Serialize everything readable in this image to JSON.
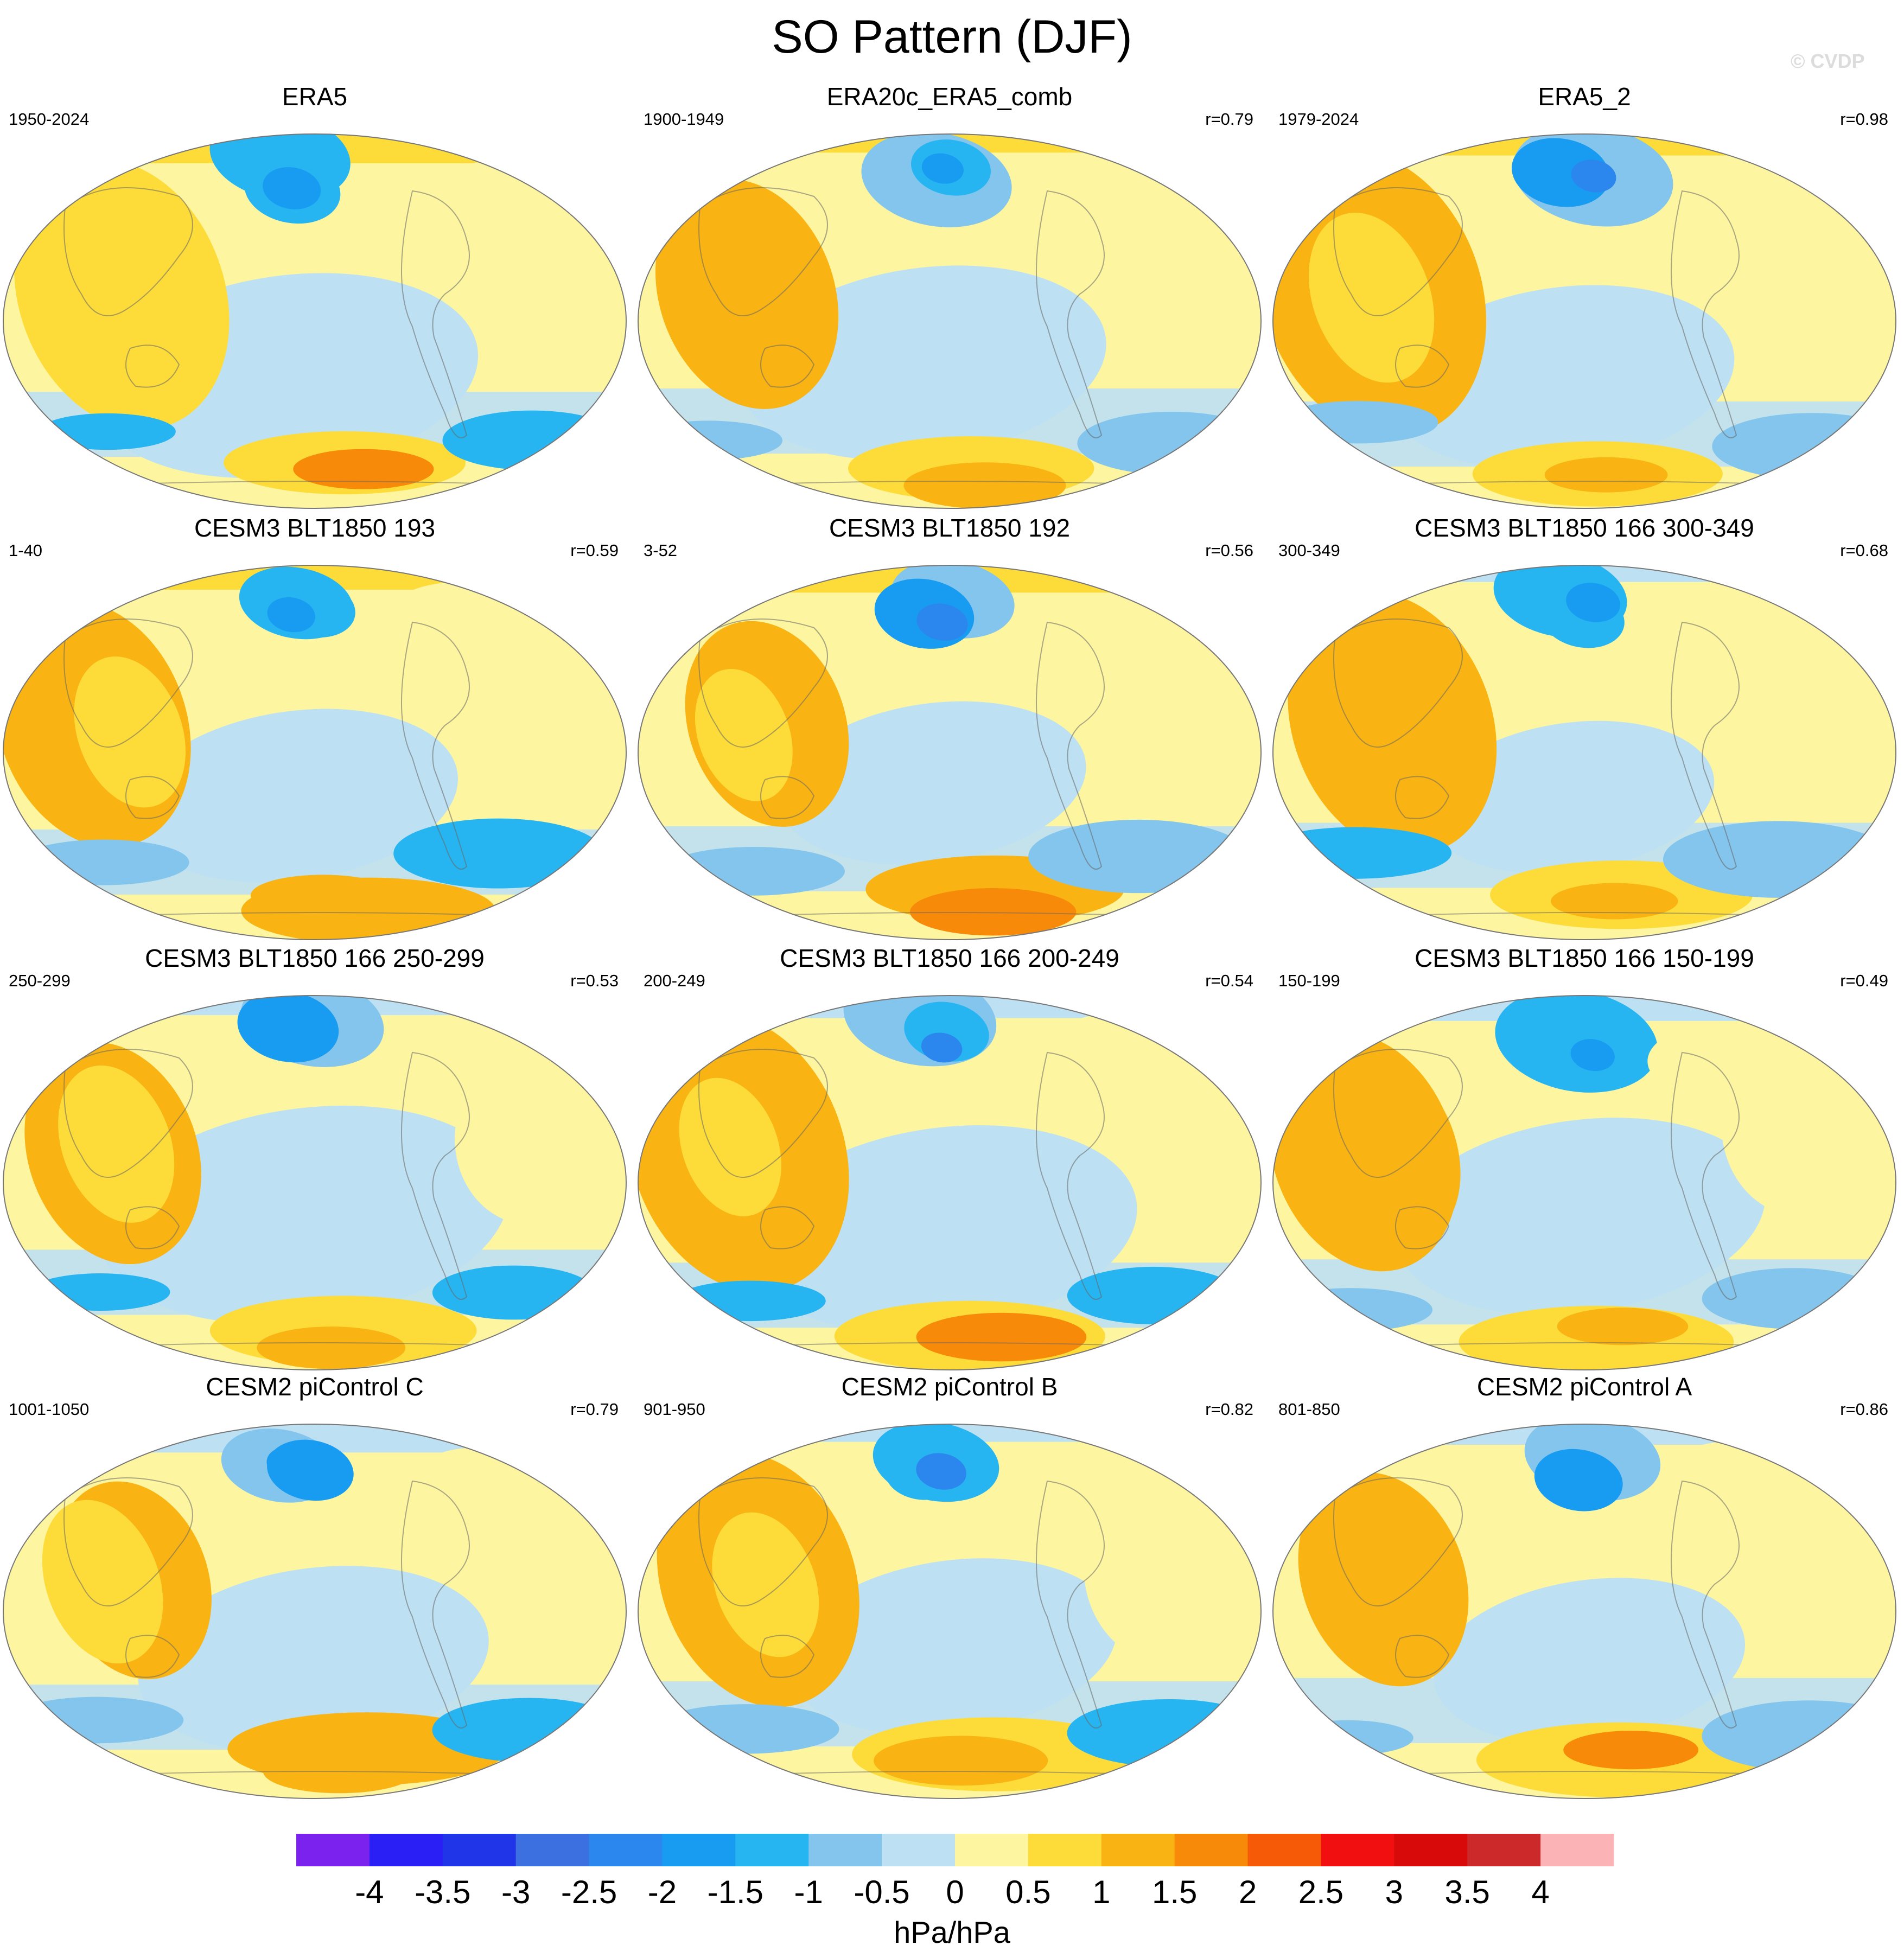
{
  "title": "SO Pattern (DJF)",
  "watermark": "© CVDP",
  "panels": [
    {
      "title": "ERA5",
      "period": "1950-2024",
      "r": "",
      "seed": 1
    },
    {
      "title": "ERA20c_ERA5_comb",
      "period": "1900-1949",
      "r": "r=0.79",
      "seed": 2
    },
    {
      "title": "ERA5_2",
      "period": "1979-2024",
      "r": "r=0.98",
      "seed": 3
    },
    {
      "title": "CESM3 BLT1850 193",
      "period": "1-40",
      "r": "r=0.59",
      "seed": 4
    },
    {
      "title": "CESM3 BLT1850 192",
      "period": "3-52",
      "r": "r=0.56",
      "seed": 5
    },
    {
      "title": "CESM3 BLT1850 166 300-349",
      "period": "300-349",
      "r": "r=0.68",
      "seed": 6
    },
    {
      "title": "CESM3 BLT1850 166 250-299",
      "period": "250-299",
      "r": "r=0.53",
      "seed": 7
    },
    {
      "title": "CESM3 BLT1850 166 200-249",
      "period": "200-249",
      "r": "r=0.54",
      "seed": 8
    },
    {
      "title": "CESM3 BLT1850 166 150-199",
      "period": "150-199",
      "r": "r=0.49",
      "seed": 9
    },
    {
      "title": "CESM2 piControl C",
      "period": "1001-1050",
      "r": "r=0.79",
      "seed": 10
    },
    {
      "title": "CESM2 piControl B",
      "period": "901-950",
      "r": "r=0.82",
      "seed": 11
    },
    {
      "title": "CESM2 piControl A",
      "period": "801-850",
      "r": "r=0.86",
      "seed": 12
    }
  ],
  "colorbar": {
    "units": "hPa/hPa",
    "labels": [
      "-4",
      "-3.5",
      "-3",
      "-2.5",
      "-2",
      "-1.5",
      "-1",
      "-0.5",
      "0",
      "0.5",
      "1",
      "1.5",
      "2",
      "2.5",
      "3",
      "3.5",
      "4"
    ],
    "colors": [
      "#7b22ee",
      "#2a1ff5",
      "#2135e8",
      "#3c6fe0",
      "#2b86ee",
      "#189cf2",
      "#27b5f2",
      "#83c5ec",
      "#bde0f3",
      "#fdf5a0",
      "#fddc3a",
      "#f9b312",
      "#f88a0a",
      "#f65a07",
      "#f20f0f",
      "#d80a0a",
      "#cc2a2a",
      "#fbb3b6"
    ]
  }
}
